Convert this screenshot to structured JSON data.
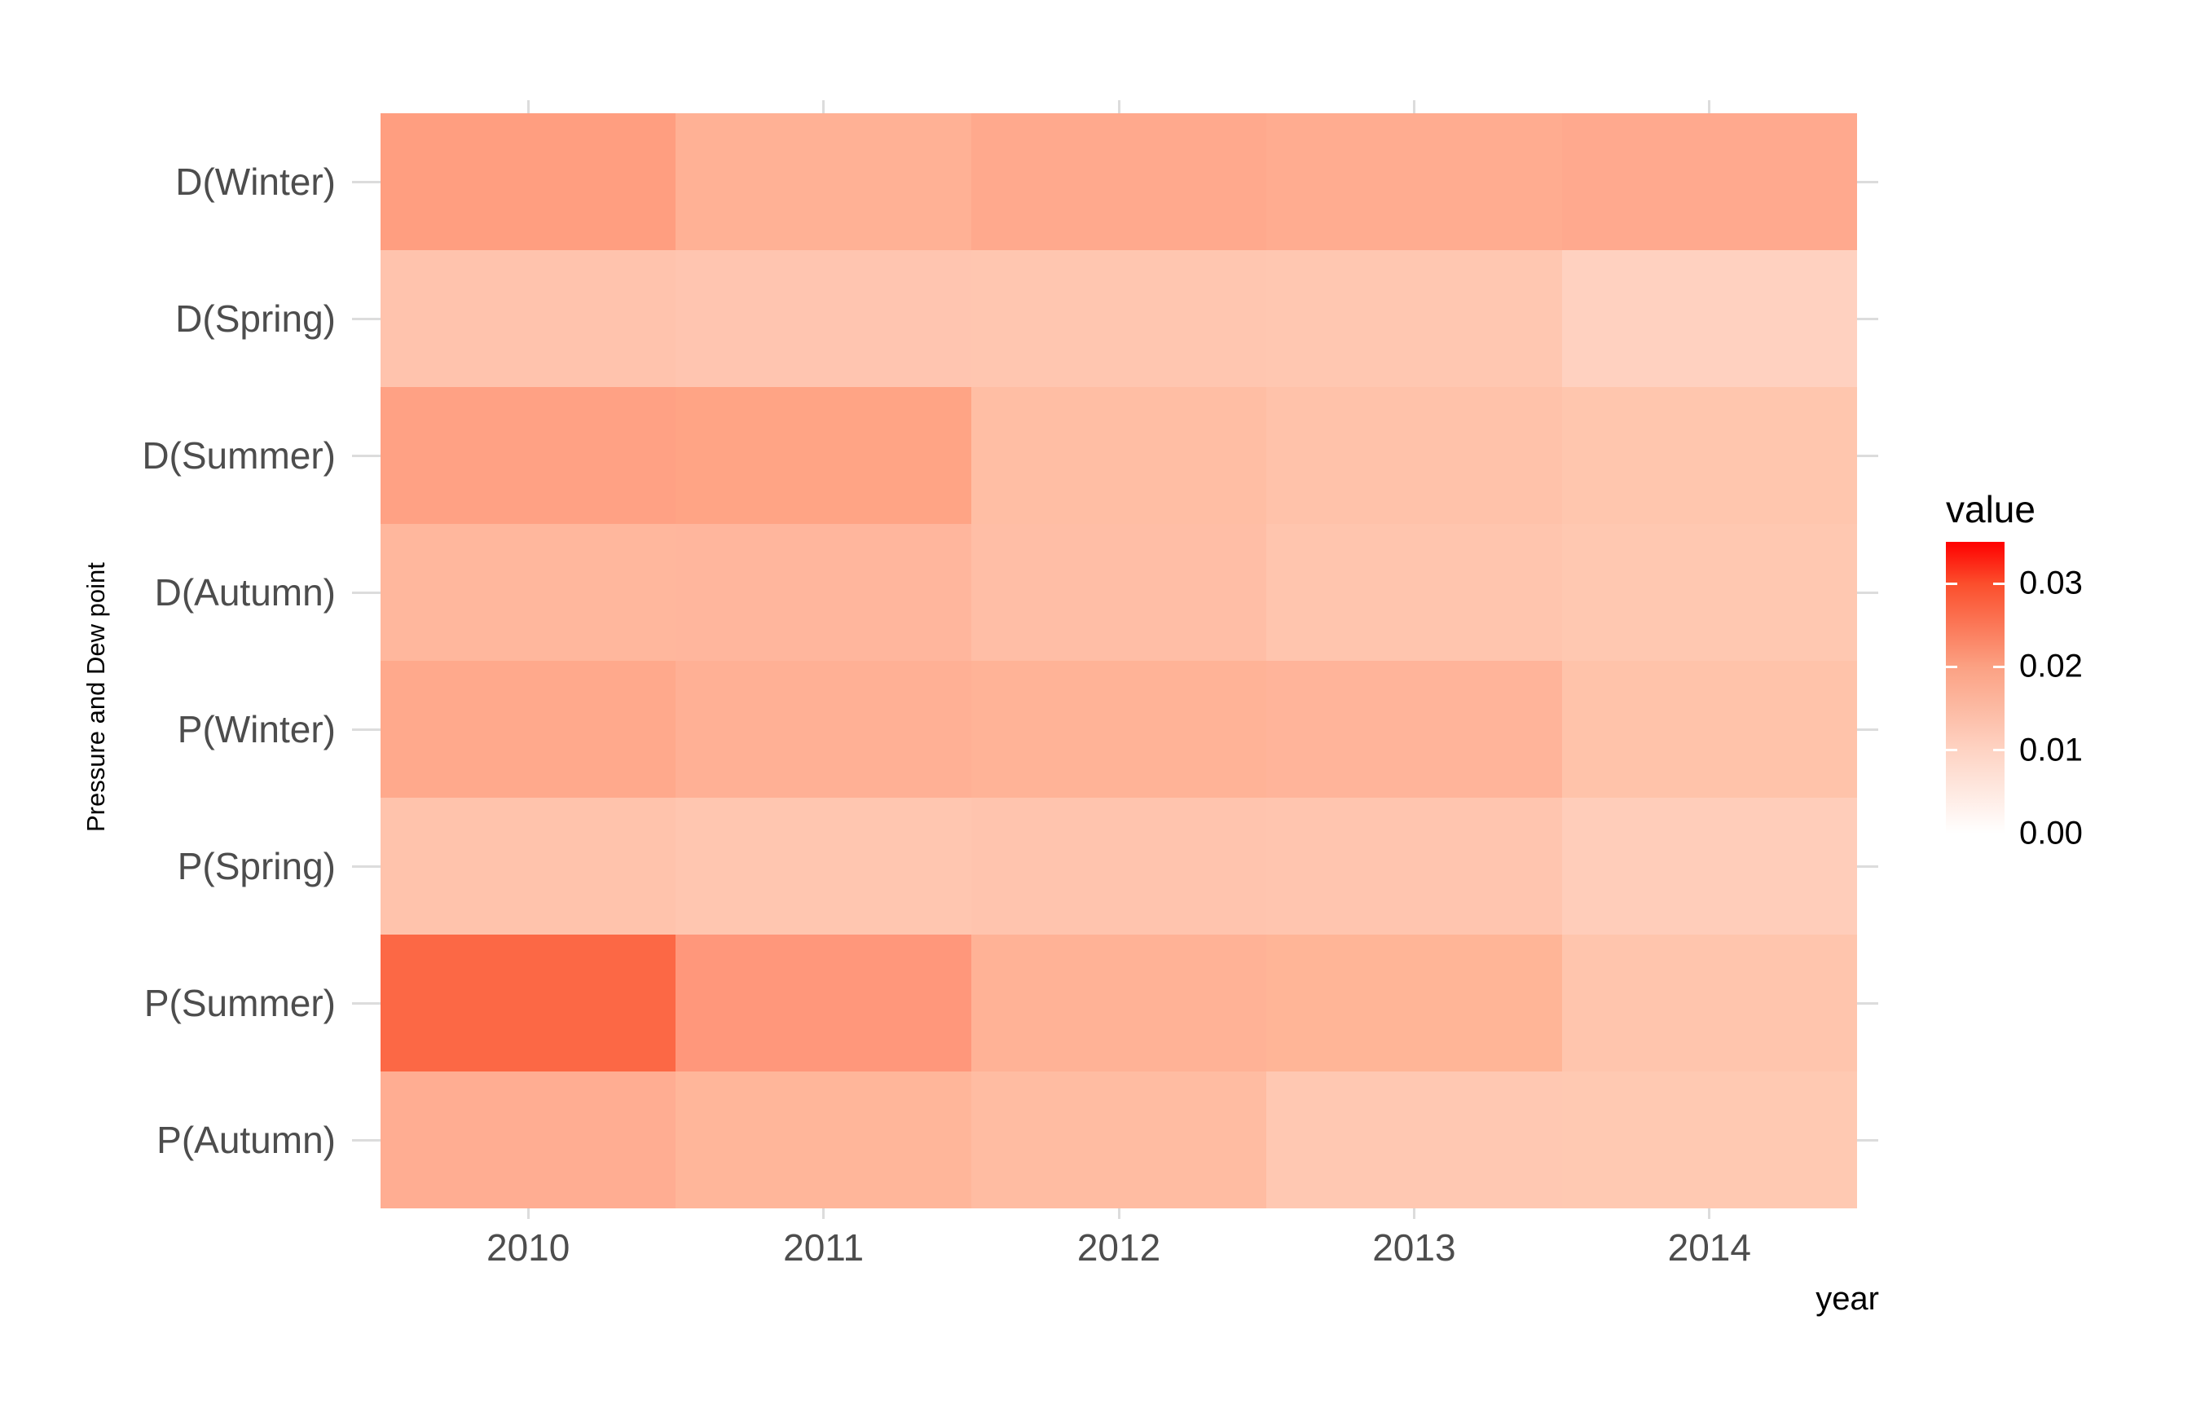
{
  "figure": {
    "y_axis_title": "Pressure and Dew point",
    "x_axis_title": "year",
    "legend_title": "value"
  },
  "colors": {
    "background": "#ffffff",
    "gridline": "#dcdcdc",
    "axis_text": "#4d4d4d",
    "title_text": "#000000"
  },
  "chart_data": {
    "type": "heatmap",
    "title": "",
    "xlabel": "year",
    "ylabel": "Pressure and Dew point",
    "x": [
      "2010",
      "2011",
      "2012",
      "2013",
      "2014"
    ],
    "y": [
      "D(Winter)",
      "D(Spring)",
      "D(Summer)",
      "D(Autumn)",
      "P(Winter)",
      "P(Spring)",
      "P(Summer)",
      "P(Autumn)"
    ],
    "grid": true,
    "values": [
      [
        0.0205,
        0.0169,
        0.0186,
        0.018,
        0.0186
      ],
      [
        0.0133,
        0.0129,
        0.0127,
        0.0124,
        0.0104
      ],
      [
        0.0201,
        0.0196,
        0.0143,
        0.0135,
        0.0127
      ],
      [
        0.0157,
        0.0159,
        0.0143,
        0.0129,
        0.0122
      ],
      [
        0.0186,
        0.0171,
        0.0165,
        0.0163,
        0.0133
      ],
      [
        0.0133,
        0.0127,
        0.0131,
        0.0129,
        0.0112
      ],
      [
        0.0269,
        0.0213,
        0.0167,
        0.0161,
        0.0129
      ],
      [
        0.0177,
        0.0159,
        0.0148,
        0.0122,
        0.012
      ]
    ],
    "cell_colors": [
      [
        "#FF9E80",
        "#FFB195",
        "#FFA98D",
        "#FFAC90",
        "#FFA98E"
      ],
      [
        "#FFC3AD",
        "#FFC5B0",
        "#FFC6B0",
        "#FFC7B1",
        "#FFD1C0"
      ],
      [
        "#FFA184",
        "#FFA485",
        "#FFBEA4",
        "#FFC2AA",
        "#FFC6AE"
      ],
      [
        "#FFB79D",
        "#FFB69D",
        "#FFBEA6",
        "#FFC5AE",
        "#FFC8B1"
      ],
      [
        "#FFA98C",
        "#FFB095",
        "#FFB397",
        "#FFB49A",
        "#FFC3AA"
      ],
      [
        "#FFC3AC",
        "#FFC6B0",
        "#FFC4AE",
        "#FFC5AF",
        "#FFCDBA"
      ],
      [
        "#FC6845",
        "#FF977B",
        "#FFB296",
        "#FFB597",
        "#FFC5AD"
      ],
      [
        "#FFAD92",
        "#FFB69A",
        "#FFBCA2",
        "#FFC8B2",
        "#FFC9B2"
      ]
    ],
    "legend": {
      "title": "value",
      "position": "right",
      "domain": [
        0,
        0.035
      ],
      "tick_labels": [
        "0.03",
        "0.02",
        "0.01",
        "0.00"
      ],
      "tick_values": [
        0.03,
        0.02,
        0.01,
        0.0
      ],
      "low_color": "#FFFFFF",
      "high_color": "#FF0000",
      "gradient_stops": [
        {
          "pos": 0.0,
          "color": "#FF0000"
        },
        {
          "pos": 0.143,
          "color": "#FB4E2C"
        },
        {
          "pos": 0.429,
          "color": "#FBA183"
        },
        {
          "pos": 0.714,
          "color": "#FED3C3"
        },
        {
          "pos": 1.0,
          "color": "#FFFFFF"
        }
      ]
    }
  }
}
